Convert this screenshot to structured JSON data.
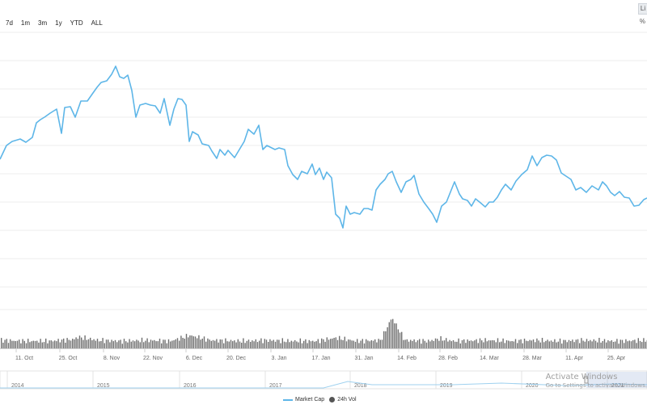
{
  "range_buttons": [
    "7d",
    "1m",
    "3m",
    "1y",
    "YTD",
    "ALL"
  ],
  "corner_tab": "Li",
  "corner_mark": "%",
  "chart_data": {
    "type": "line",
    "x_ticks": [
      "11. Oct",
      "25. Oct",
      "8. Nov",
      "22. Nov",
      "6. Dec",
      "20. Dec",
      "3. Jan",
      "17. Jan",
      "31. Jan",
      "14. Feb",
      "28. Feb",
      "14. Mar",
      "28. Mar",
      "11. Apr",
      "25. Apr"
    ],
    "navigator_ticks": [
      "2014",
      "2015",
      "2016",
      "2017",
      "2018",
      "2019",
      "2020",
      "2021"
    ],
    "series": [
      {
        "name": "Market Cap",
        "color": "#5eb6e8",
        "points": [
          [
            0,
            197
          ],
          [
            8,
            180
          ],
          [
            15,
            175
          ],
          [
            25,
            172
          ],
          [
            32,
            176
          ],
          [
            40,
            170
          ],
          [
            45,
            152
          ],
          [
            50,
            148
          ],
          [
            55,
            145
          ],
          [
            62,
            140
          ],
          [
            70,
            135
          ],
          [
            76,
            165
          ],
          [
            80,
            133
          ],
          [
            87,
            132
          ],
          [
            93,
            145
          ],
          [
            100,
            125
          ],
          [
            108,
            125
          ],
          [
            115,
            115
          ],
          [
            120,
            108
          ],
          [
            125,
            102
          ],
          [
            132,
            100
          ],
          [
            138,
            92
          ],
          [
            143,
            82
          ],
          [
            148,
            95
          ],
          [
            153,
            97
          ],
          [
            158,
            93
          ],
          [
            163,
            112
          ],
          [
            168,
            145
          ],
          [
            173,
            130
          ],
          [
            180,
            128
          ],
          [
            186,
            130
          ],
          [
            192,
            131
          ],
          [
            198,
            140
          ],
          [
            203,
            122
          ],
          [
            210,
            155
          ],
          [
            215,
            135
          ],
          [
            220,
            122
          ],
          [
            225,
            123
          ],
          [
            230,
            130
          ],
          [
            234,
            175
          ],
          [
            238,
            163
          ],
          [
            245,
            167
          ],
          [
            250,
            178
          ],
          [
            258,
            180
          ],
          [
            262,
            187
          ],
          [
            268,
            196
          ],
          [
            272,
            185
          ],
          [
            278,
            192
          ],
          [
            282,
            186
          ],
          [
            290,
            195
          ],
          [
            296,
            185
          ],
          [
            302,
            175
          ],
          [
            307,
            160
          ],
          [
            314,
            166
          ],
          [
            320,
            155
          ],
          [
            325,
            185
          ],
          [
            330,
            180
          ],
          [
            336,
            183
          ],
          [
            340,
            185
          ],
          [
            345,
            183
          ],
          [
            352,
            185
          ],
          [
            356,
            205
          ],
          [
            362,
            216
          ],
          [
            368,
            222
          ],
          [
            373,
            212
          ],
          [
            380,
            215
          ],
          [
            386,
            203
          ],
          [
            390,
            216
          ],
          [
            395,
            208
          ],
          [
            400,
            222
          ],
          [
            404,
            213
          ],
          [
            410,
            220
          ],
          [
            415,
            265
          ],
          [
            420,
            270
          ],
          [
            424,
            282
          ],
          [
            428,
            255
          ],
          [
            433,
            265
          ],
          [
            438,
            263
          ],
          [
            445,
            265
          ],
          [
            450,
            258
          ],
          [
            455,
            258
          ],
          [
            460,
            260
          ],
          [
            465,
            235
          ],
          [
            470,
            228
          ],
          [
            476,
            222
          ],
          [
            480,
            215
          ],
          [
            485,
            212
          ],
          [
            490,
            225
          ],
          [
            496,
            238
          ],
          [
            502,
            225
          ],
          [
            508,
            222
          ],
          [
            512,
            217
          ],
          [
            518,
            240
          ],
          [
            524,
            250
          ],
          [
            530,
            258
          ],
          [
            535,
            265
          ],
          [
            540,
            275
          ],
          [
            546,
            255
          ],
          [
            552,
            250
          ],
          [
            558,
            235
          ],
          [
            562,
            225
          ],
          [
            568,
            240
          ],
          [
            572,
            246
          ],
          [
            578,
            248
          ],
          [
            583,
            255
          ],
          [
            588,
            246
          ],
          [
            593,
            250
          ],
          [
            600,
            256
          ],
          [
            605,
            250
          ],
          [
            610,
            250
          ],
          [
            615,
            244
          ],
          [
            620,
            235
          ],
          [
            625,
            228
          ],
          [
            632,
            235
          ],
          [
            638,
            224
          ],
          [
            645,
            216
          ],
          [
            652,
            210
          ],
          [
            658,
            193
          ],
          [
            664,
            205
          ],
          [
            670,
            195
          ],
          [
            676,
            192
          ],
          [
            682,
            193
          ],
          [
            688,
            198
          ],
          [
            694,
            214
          ],
          [
            700,
            218
          ],
          [
            706,
            222
          ],
          [
            712,
            235
          ],
          [
            718,
            232
          ],
          [
            725,
            238
          ],
          [
            732,
            230
          ],
          [
            740,
            235
          ],
          [
            745,
            225
          ],
          [
            750,
            230
          ],
          [
            755,
            238
          ],
          [
            760,
            242
          ],
          [
            766,
            237
          ],
          [
            772,
            244
          ],
          [
            778,
            245
          ],
          [
            784,
            255
          ],
          [
            790,
            254
          ],
          [
            796,
            247
          ],
          [
            800,
            245
          ]
        ]
      },
      {
        "name": "24h Vol",
        "color": "#555555",
        "points": [
          [
            0,
            10
          ],
          [
            30,
            9
          ],
          [
            60,
            9
          ],
          [
            90,
            11
          ],
          [
            96,
            14
          ],
          [
            120,
            10
          ],
          [
            150,
            9
          ],
          [
            180,
            10
          ],
          [
            210,
            9
          ],
          [
            234,
            16
          ],
          [
            260,
            10
          ],
          [
            300,
            9
          ],
          [
            330,
            10
          ],
          [
            360,
            9
          ],
          [
            390,
            9
          ],
          [
            415,
            13
          ],
          [
            440,
            9
          ],
          [
            470,
            10
          ],
          [
            484,
            38
          ],
          [
            500,
            10
          ],
          [
            530,
            9
          ],
          [
            542,
            12
          ],
          [
            560,
            9
          ],
          [
            600,
            10
          ],
          [
            630,
            9
          ],
          [
            660,
            10
          ],
          [
            690,
            9
          ],
          [
            720,
            10
          ],
          [
            760,
            9
          ],
          [
            800,
            10
          ]
        ]
      }
    ],
    "grid": true,
    "legend_placement": "bottom-center"
  },
  "watermark": {
    "line1": "Activate Windows",
    "line2": "Go to Settings to activate Windows."
  }
}
